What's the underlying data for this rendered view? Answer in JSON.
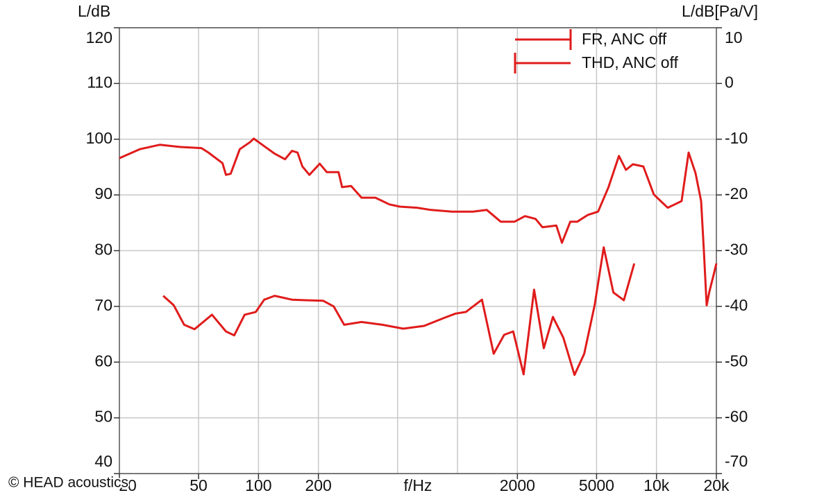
{
  "watermark": "© HEAD acoustics",
  "chart_data": {
    "type": "line",
    "y_label": "L/dB",
    "y2_label": "L/dB[Pa/V]",
    "x_label": "f/Hz",
    "xscale": "log",
    "xlim": [
      20,
      20000
    ],
    "ylim": [
      40,
      120
    ],
    "y2lim": [
      -70,
      10
    ],
    "xticks": [
      20,
      50,
      100,
      200,
      2000,
      5000,
      {
        "value": 10000,
        "label": "10k"
      },
      {
        "value": 20000,
        "label": "20k"
      }
    ],
    "xgrid": [
      50,
      100,
      200,
      500,
      1000,
      2000,
      5000,
      10000
    ],
    "yticks": [
      40,
      50,
      60,
      70,
      80,
      90,
      100,
      110,
      120
    ],
    "y2ticks": [
      -70,
      -60,
      -50,
      -40,
      -30,
      -20,
      -10,
      0,
      10
    ],
    "grid": true,
    "legend": "top-right",
    "series": [
      {
        "name": "FR, ANC off",
        "color": "#e01b1b",
        "legend_tick": "end",
        "x": [
          20,
          25.3,
          31.9,
          40.6,
          51.7,
          56,
          65.9,
          68.6,
          72.5,
          80.5,
          90.9,
          94.6,
          102.6,
          120.5,
          135.9,
          147.3,
          157.1,
          166.2,
          180.2,
          203.2,
          220.3,
          252.6,
          263,
          292.1,
          329.5,
          387,
          455,
          513,
          627,
          737,
          938,
          1195,
          1404,
          1649,
          1937,
          2185,
          2467,
          2673,
          3140,
          3349,
          3690,
          3998,
          4510,
          5088,
          5741,
          6477,
          7022,
          7611,
          8588,
          9689,
          10503,
          11385,
          12341,
          13377,
          14500,
          15719,
          16760,
          17300,
          17870,
          18460,
          19230,
          20000
        ],
        "values": [
          96.6,
          98.2,
          99.0,
          98.6,
          98.4,
          97.6,
          95.7,
          93.6,
          93.8,
          98.2,
          99.5,
          100.1,
          99.2,
          97.4,
          96.4,
          97.9,
          97.6,
          95.1,
          93.6,
          95.6,
          94.1,
          94.1,
          91.4,
          91.6,
          89.5,
          89.5,
          88.3,
          87.9,
          87.7,
          87.3,
          87.0,
          87.0,
          87.3,
          85.2,
          85.2,
          86.2,
          85.7,
          84.2,
          84.5,
          81.4,
          85.2,
          85.2,
          86.4,
          87.0,
          91.4,
          97.0,
          94.5,
          95.5,
          95.1,
          90.1,
          88.9,
          87.7,
          88.3,
          88.9,
          97.6,
          93.9,
          88.9,
          80.2,
          70.2,
          72.7,
          75.2,
          77.7
        ]
      },
      {
        "name": "THD, ANC off",
        "color": "#e01b1b",
        "axis": "y2",
        "legend_tick": "start",
        "x": [
          33.2,
          37.5,
          42.3,
          47.7,
          58.4,
          68.6,
          75.5,
          85.2,
          96.9,
          106.8,
          120.5,
          147.3,
          173,
          211.5,
          238.8,
          269.4,
          329.5,
          419.6,
          534,
          680,
          866,
          977,
          1102,
          1327,
          1521,
          1716,
          1906,
          2150,
          2426,
          2716,
          3016,
          3403,
          3872,
          4334,
          4889,
          5430,
          6074,
          6855,
          7736
        ],
        "values": [
          -38.1,
          -39.8,
          -43.3,
          -44.1,
          -41.5,
          -44.5,
          -45.2,
          -41.5,
          -41.0,
          -38.8,
          -38.1,
          -38.8,
          -38.9,
          -39.0,
          -40.0,
          -43.3,
          -42.8,
          -43.3,
          -44.0,
          -43.5,
          -42.0,
          -41.3,
          -41.0,
          -38.8,
          -48.5,
          -45.1,
          -44.5,
          -52.2,
          -37.0,
          -47.5,
          -41.9,
          -45.6,
          -52.3,
          -48.5,
          -39.8,
          -29.4,
          -37.5,
          -38.9,
          -32.3
        ]
      }
    ]
  }
}
